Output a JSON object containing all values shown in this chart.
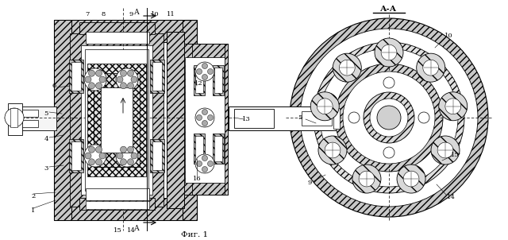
{
  "fig_label": "Фиг. 1",
  "section_label": "А-А",
  "bg_color": "#ffffff",
  "fig_width": 6.4,
  "fig_height": 3.02,
  "dpi": 100
}
